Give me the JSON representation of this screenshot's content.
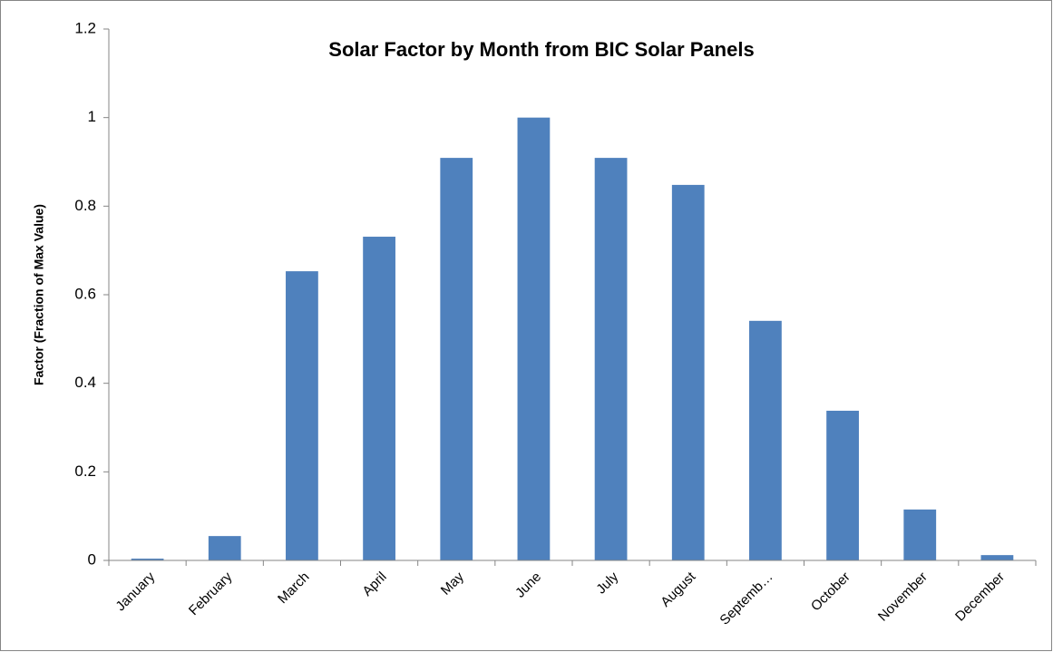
{
  "chart_data": {
    "type": "bar",
    "title": "Solar Factor by Month from BIC Solar Panels",
    "y_label": "Factor (Fraction of Max Value)",
    "categories": [
      "January",
      "February",
      "March",
      "April",
      "May",
      "June",
      "July",
      "August",
      "Septemb…",
      "October",
      "November",
      "December"
    ],
    "values": [
      0.004,
      0.055,
      0.653,
      0.731,
      0.909,
      1.0,
      0.909,
      0.848,
      0.541,
      0.338,
      0.115,
      0.012
    ],
    "color": "#4f81bd",
    "ylim": [
      0,
      1.2
    ],
    "yticks": [
      0,
      0.2,
      0.4,
      0.6,
      0.8,
      1,
      1.2
    ],
    "grid": false
  }
}
